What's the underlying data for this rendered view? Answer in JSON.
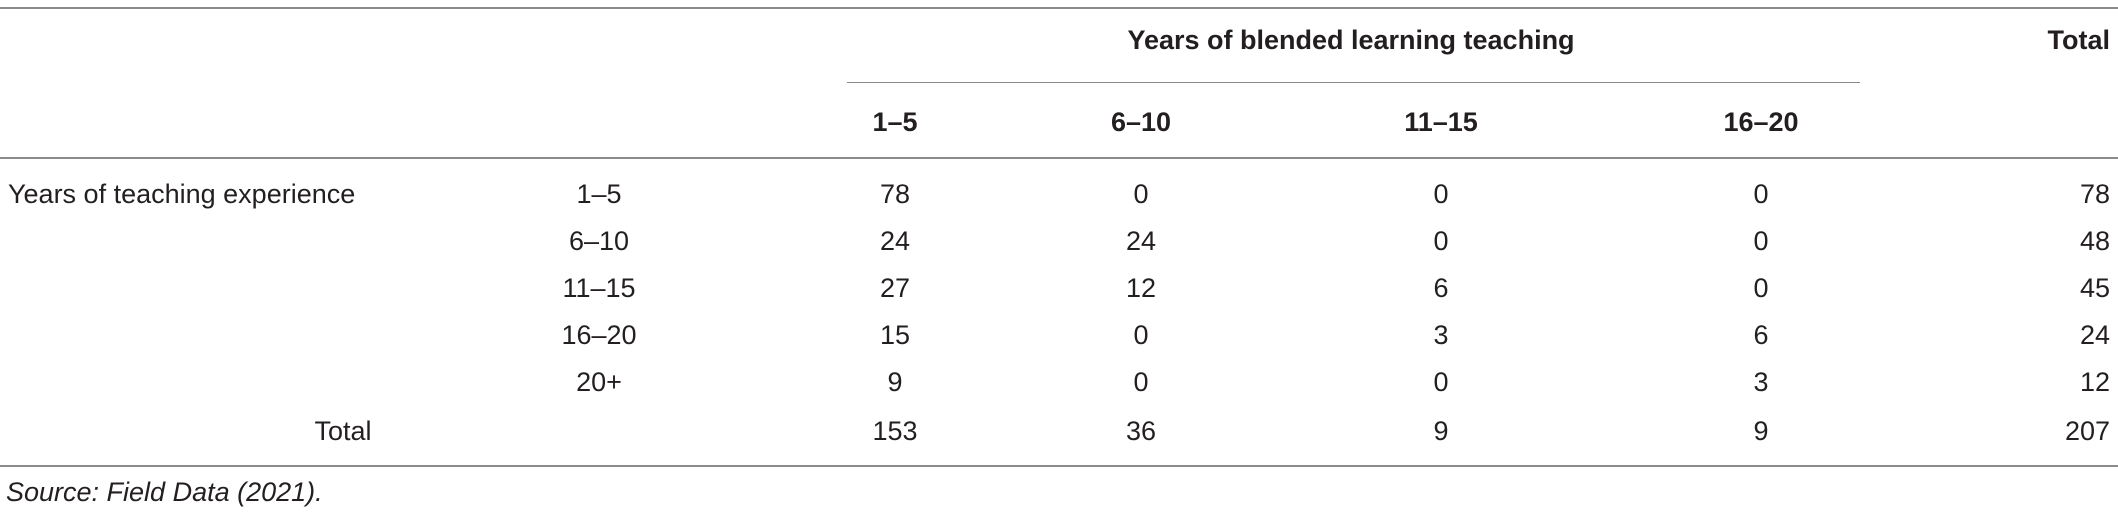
{
  "table": {
    "group_header": "Years of blended learning teaching",
    "total_header": "Total",
    "column_headers": [
      "1–5",
      "6–10",
      "11–15",
      "16–20"
    ],
    "row_group_label": "Years of teaching experience",
    "rows": [
      {
        "label": "1–5",
        "values": [
          "78",
          "0",
          "0",
          "0"
        ],
        "total": "78"
      },
      {
        "label": "6–10",
        "values": [
          "24",
          "24",
          "0",
          "0"
        ],
        "total": "48"
      },
      {
        "label": "11–15",
        "values": [
          "27",
          "12",
          "6",
          "0"
        ],
        "total": "45"
      },
      {
        "label": "16–20",
        "values": [
          "15",
          "0",
          "3",
          "6"
        ],
        "total": "24"
      },
      {
        "label": "20+",
        "values": [
          "9",
          "0",
          "0",
          "3"
        ],
        "total": "12"
      }
    ],
    "total_row": {
      "label": "Total",
      "values": [
        "153",
        "36",
        "9",
        "9"
      ],
      "total": "207"
    }
  },
  "source_note": "Source: Field Data (2021)."
}
